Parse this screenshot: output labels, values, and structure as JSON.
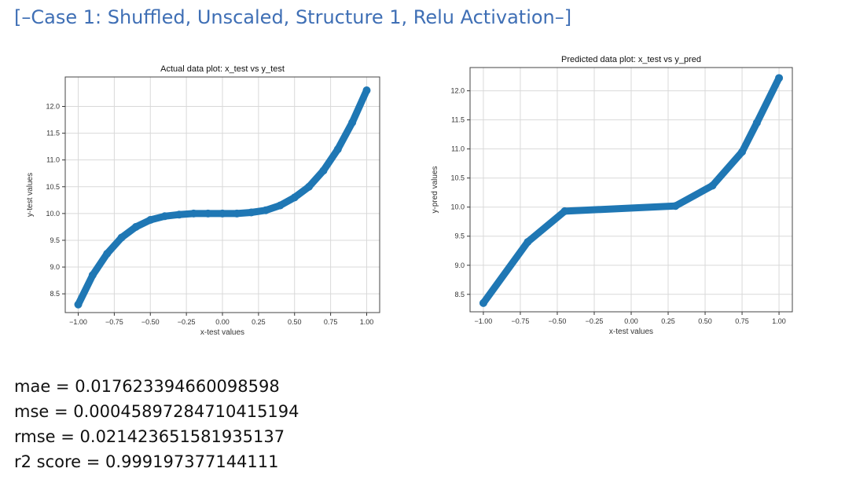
{
  "heading": "[–Case 1: Shuffled, Unscaled, Structure 1, Relu Activation–]",
  "colors": {
    "heading": "#3f6fb5",
    "series": "#1f77b4",
    "grid": "#d9d9d9"
  },
  "chart_data": [
    {
      "type": "scatter",
      "title": "Actual data plot: x_test vs y_test",
      "xlabel": "x-test values",
      "ylabel": "y-test values",
      "xlim": [
        -1.09,
        1.09
      ],
      "ylim": [
        8.15,
        12.55
      ],
      "xticks": [
        "-1.00",
        "-0.75",
        "-0.50",
        "-0.25",
        "0.00",
        "0.25",
        "0.50",
        "0.75",
        "1.00"
      ],
      "yticks": [
        "8.5",
        "9.0",
        "9.5",
        "10.0",
        "10.5",
        "11.0",
        "11.5",
        "12.0"
      ],
      "grid": true,
      "series": [
        {
          "x": [
            -1.0,
            -0.9,
            -0.8,
            -0.7,
            -0.6,
            -0.5,
            -0.4,
            -0.3,
            -0.2,
            -0.1,
            0.0,
            0.1,
            0.2,
            0.3,
            0.4,
            0.5,
            0.6,
            0.7,
            0.8,
            0.9,
            1.0
          ],
          "y": [
            8.3,
            8.85,
            9.25,
            9.55,
            9.75,
            9.88,
            9.95,
            9.98,
            10.0,
            10.0,
            10.0,
            10.0,
            10.02,
            10.06,
            10.15,
            10.3,
            10.5,
            10.8,
            11.2,
            11.7,
            12.3
          ]
        }
      ]
    },
    {
      "type": "scatter",
      "title": "Predicted data plot: x_test vs y_pred",
      "xlabel": "x-test values",
      "ylabel": "y-pred values",
      "xlim": [
        -1.09,
        1.09
      ],
      "ylim": [
        8.2,
        12.4
      ],
      "xticks": [
        "-1.00",
        "-0.75",
        "-0.50",
        "-0.25",
        "0.00",
        "0.25",
        "0.50",
        "0.75",
        "1.00"
      ],
      "yticks": [
        "8.5",
        "9.0",
        "9.5",
        "10.0",
        "10.5",
        "11.0",
        "11.5",
        "12.0"
      ],
      "grid": true,
      "series": [
        {
          "x": [
            -1.0,
            -0.7,
            -0.45,
            0.3,
            0.55,
            0.75,
            0.85,
            1.0
          ],
          "y": [
            8.35,
            9.4,
            9.93,
            10.02,
            10.37,
            10.95,
            11.45,
            12.22
          ]
        }
      ]
    }
  ],
  "metrics": [
    "mae = 0.017623394660098598",
    "mse = 0.00045897284710415194",
    "rmse = 0.021423651581935137",
    "r2 score = 0.999197377144111"
  ]
}
